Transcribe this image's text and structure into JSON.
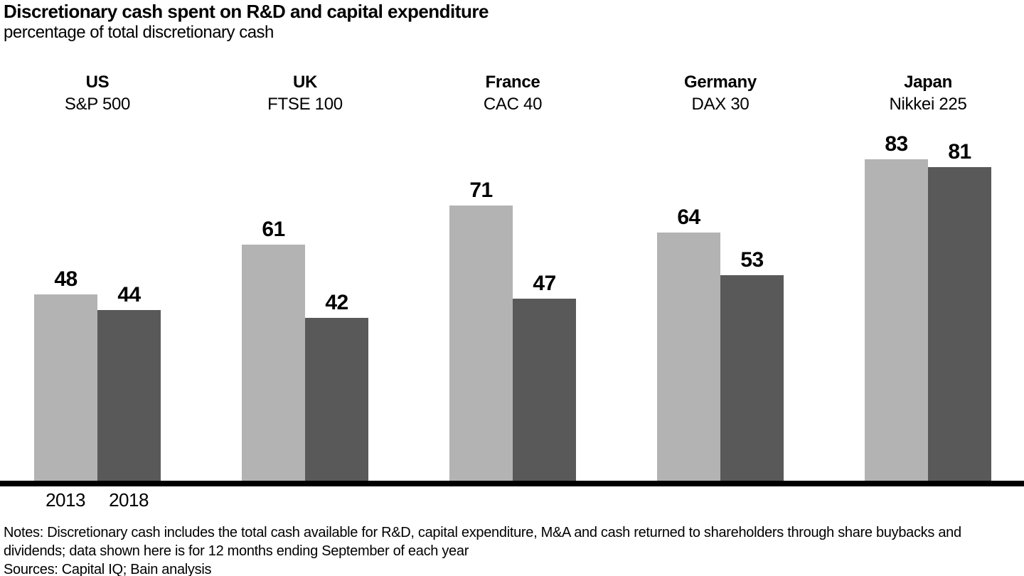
{
  "header": {
    "title": "Discretionary cash spent on R&D and capital expenditure",
    "subtitle": "percentage of total discretionary cash"
  },
  "chart_data": {
    "type": "bar",
    "title": "Discretionary cash spent on R&D and capital expenditure",
    "subtitle": "percentage of total discretionary cash",
    "unit": "percentage of total discretionary cash",
    "ylim": [
      0,
      100
    ],
    "grid": false,
    "legend_position": "below-axis-under-first-group",
    "groups": [
      {
        "country": "US",
        "index": "S&P 500"
      },
      {
        "country": "UK",
        "index": "FTSE 100"
      },
      {
        "country": "France",
        "index": "CAC 40"
      },
      {
        "country": "Germany",
        "index": "DAX 30"
      },
      {
        "country": "Japan",
        "index": "Nikkei 225"
      }
    ],
    "series": [
      {
        "name": "2013",
        "color": "#b3b3b3",
        "values": [
          48,
          61,
          71,
          64,
          83
        ]
      },
      {
        "name": "2018",
        "color": "#595959",
        "values": [
          44,
          42,
          47,
          53,
          81
        ]
      }
    ]
  },
  "footer": {
    "notes": "Notes: Discretionary cash includes the total cash available for R&D, capital expenditure, M&A and cash returned to shareholders through share buybacks and dividends; data shown here is for 12 months ending September of each year",
    "sources": "Sources: Capital IQ; Bain analysis"
  },
  "colors": {
    "bar_2013": "#b3b3b3",
    "bar_2018": "#595959",
    "axis": "#000000",
    "text": "#000000",
    "background": "#ffffff"
  }
}
